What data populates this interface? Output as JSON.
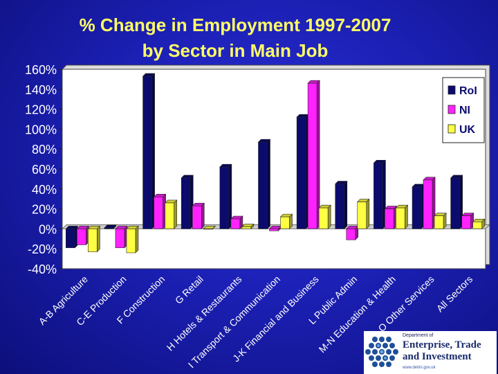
{
  "title_line1": "% Change in Employment 1997-2007",
  "title_line2": "by Sector in Main Job",
  "colors": {
    "RoI": "#0b0b6e",
    "NI": "#ff22ff",
    "UK": "#ffff44",
    "title": "#ffff66",
    "plot_bg": "#ffffff"
  },
  "logo": {
    "dept": "Department of",
    "line1": "Enterprise, Trade",
    "line2": "and Investment",
    "url": "www.detini.gov.uk"
  },
  "chart_data": {
    "type": "bar",
    "title": "% Change in Employment 1997-2007 by Sector in Main Job",
    "categories": [
      "A-B Agriculture",
      "C-E Production",
      "F Construction",
      "G Retail",
      "H Hotels & Restaurants",
      "I Transport & Communication",
      "J-K Financial and Business",
      "L Public Admin",
      "M-N Education & Health",
      "O Other Services",
      "All Sectors"
    ],
    "series": [
      {
        "name": "RoI",
        "values": [
          -19,
          1,
          153,
          51,
          62,
          87,
          112,
          45,
          66,
          42,
          51
        ]
      },
      {
        "name": "NI",
        "values": [
          -16,
          -19,
          32,
          23,
          10,
          -2,
          146,
          -11,
          20,
          49,
          13
        ]
      },
      {
        "name": "UK",
        "values": [
          -23,
          -24,
          26,
          0,
          2,
          12,
          21,
          27,
          21,
          13,
          7
        ]
      }
    ],
    "ylim": [
      -40,
      160
    ],
    "yticks": [
      "160%",
      "140%",
      "120%",
      "100%",
      "80%",
      "60%",
      "40%",
      "20%",
      "0%",
      "-20%",
      "-40%"
    ],
    "legend": "top-right",
    "grid": false
  }
}
